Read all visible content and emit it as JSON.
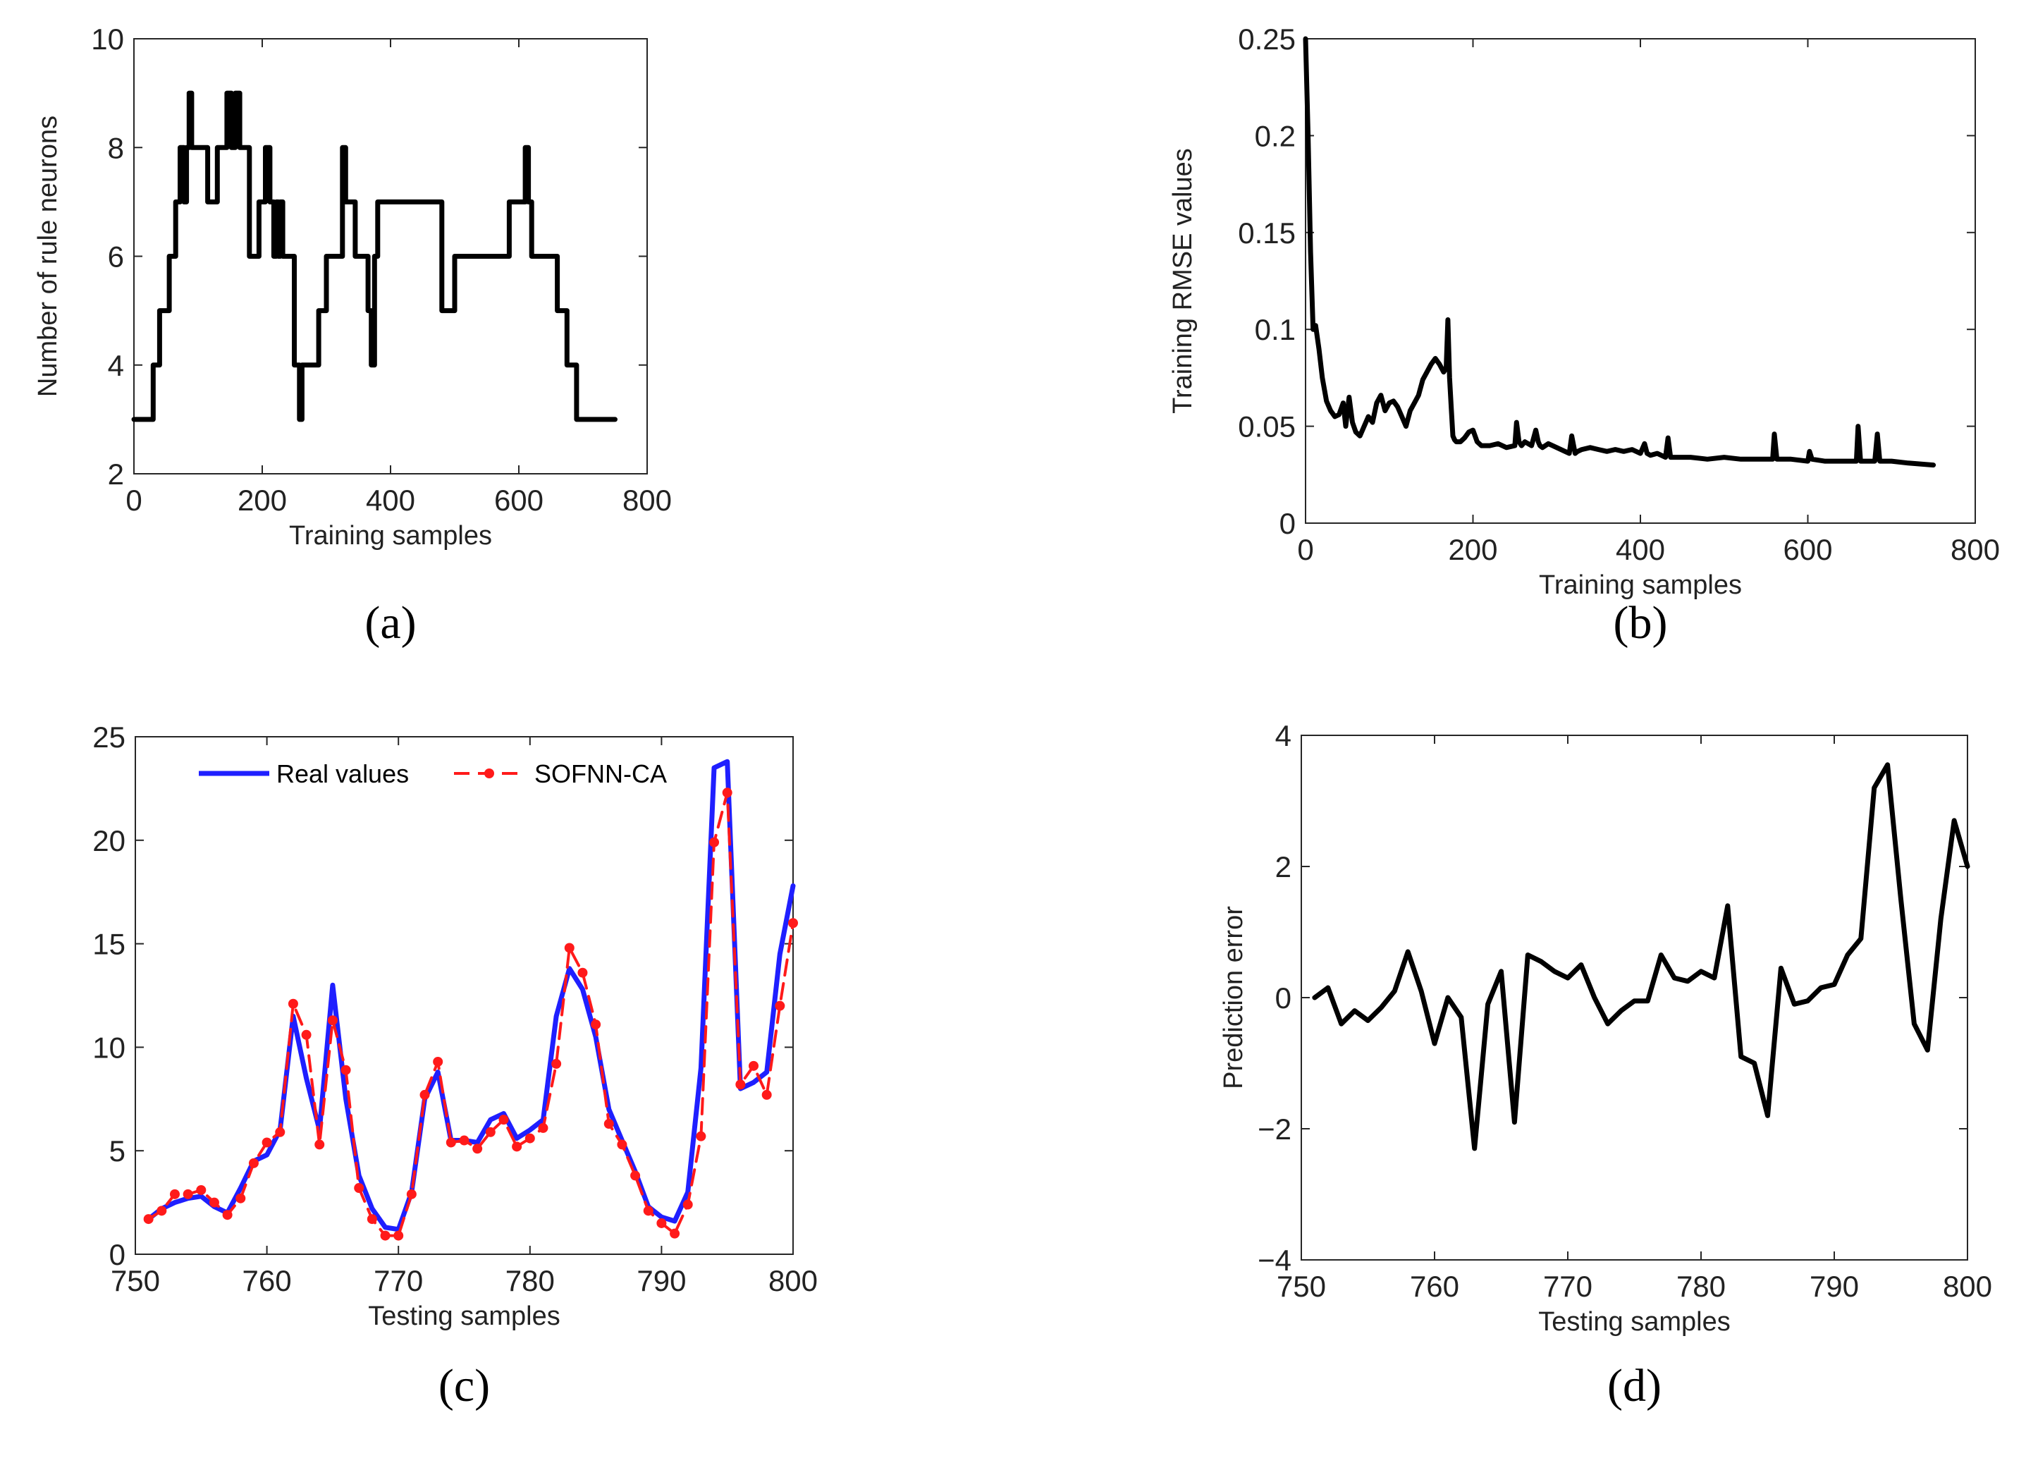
{
  "chart_data": [
    {
      "id": "a",
      "type": "line",
      "panel_label": "(a)",
      "xlabel": "Training samples",
      "ylabel": "Number of rule neurons",
      "xlim": [
        0,
        800
      ],
      "ylim": [
        2,
        10
      ],
      "xticks": [
        0,
        200,
        400,
        600,
        800
      ],
      "yticks": [
        2,
        4,
        6,
        8,
        10
      ],
      "grid": false,
      "series": [
        {
          "name": "Number of rule neurons",
          "color": "#000000",
          "step": true,
          "x": [
            0,
            30,
            40,
            55,
            65,
            72,
            78,
            82,
            86,
            90,
            94,
            115,
            130,
            145,
            152,
            158,
            165,
            180,
            195,
            205,
            212,
            218,
            222,
            225,
            228,
            232,
            250,
            258,
            262,
            288,
            300,
            325,
            330,
            345,
            365,
            370,
            375,
            380,
            385,
            420,
            480,
            490,
            500,
            510,
            585,
            602,
            610,
            615,
            620,
            640,
            660,
            675,
            690,
            750
          ],
          "y": [
            3,
            4,
            5,
            6,
            7,
            8,
            7,
            8,
            9,
            8,
            8,
            7,
            8,
            9,
            8,
            9,
            8,
            6,
            7,
            8,
            7,
            6,
            7,
            6,
            7,
            6,
            4,
            3,
            4,
            5,
            6,
            8,
            7,
            6,
            5,
            4,
            6,
            7,
            7,
            7,
            5,
            5,
            6,
            6,
            7,
            7,
            8,
            7,
            6,
            6,
            5,
            4,
            3,
            3
          ]
        }
      ]
    },
    {
      "id": "b",
      "type": "line",
      "panel_label": "(b)",
      "xlabel": "Training samples",
      "ylabel": "Training RMSE values",
      "xlim": [
        0,
        800
      ],
      "ylim": [
        0,
        0.25
      ],
      "xticks": [
        0,
        200,
        400,
        600,
        800
      ],
      "ytick_labels": [
        "0",
        "0.05",
        "0.1",
        "0.15",
        "0.2",
        "0.25"
      ],
      "yticks": [
        0,
        0.05,
        0.1,
        0.15,
        0.2,
        0.25
      ],
      "grid": false,
      "series": [
        {
          "name": "Training RMSE",
          "color": "#000000",
          "x": [
            0,
            3,
            6,
            9,
            12,
            16,
            20,
            25,
            30,
            35,
            40,
            45,
            48,
            52,
            56,
            60,
            65,
            70,
            75,
            80,
            85,
            90,
            95,
            100,
            105,
            110,
            115,
            120,
            125,
            130,
            135,
            140,
            145,
            150,
            155,
            160,
            165,
            168,
            170,
            172,
            174,
            176,
            178,
            180,
            185,
            190,
            195,
            200,
            205,
            210,
            220,
            230,
            240,
            250,
            252,
            255,
            258,
            262,
            270,
            275,
            278,
            280,
            283,
            290,
            300,
            310,
            315,
            318,
            322,
            325,
            330,
            340,
            350,
            360,
            370,
            380,
            390,
            400,
            405,
            408,
            412,
            420,
            430,
            433,
            436,
            440,
            460,
            480,
            500,
            520,
            540,
            558,
            560,
            563,
            566,
            580,
            600,
            602,
            605,
            620,
            640,
            658,
            660,
            663,
            666,
            680,
            683,
            686,
            700,
            720,
            750
          ],
          "y": [
            0.25,
            0.2,
            0.14,
            0.1,
            0.102,
            0.09,
            0.075,
            0.063,
            0.058,
            0.055,
            0.056,
            0.062,
            0.05,
            0.065,
            0.052,
            0.047,
            0.045,
            0.05,
            0.055,
            0.052,
            0.062,
            0.066,
            0.058,
            0.062,
            0.063,
            0.06,
            0.055,
            0.05,
            0.058,
            0.062,
            0.066,
            0.074,
            0.078,
            0.082,
            0.085,
            0.082,
            0.078,
            0.08,
            0.105,
            0.075,
            0.06,
            0.045,
            0.043,
            0.042,
            0.042,
            0.044,
            0.047,
            0.048,
            0.042,
            0.04,
            0.04,
            0.041,
            0.039,
            0.04,
            0.052,
            0.042,
            0.04,
            0.042,
            0.04,
            0.048,
            0.042,
            0.04,
            0.039,
            0.041,
            0.039,
            0.037,
            0.036,
            0.045,
            0.036,
            0.037,
            0.038,
            0.039,
            0.038,
            0.037,
            0.038,
            0.037,
            0.038,
            0.036,
            0.041,
            0.036,
            0.035,
            0.036,
            0.034,
            0.044,
            0.034,
            0.034,
            0.034,
            0.033,
            0.034,
            0.033,
            0.033,
            0.033,
            0.046,
            0.033,
            0.033,
            0.033,
            0.032,
            0.037,
            0.033,
            0.032,
            0.032,
            0.032,
            0.05,
            0.032,
            0.032,
            0.032,
            0.046,
            0.032,
            0.032,
            0.031,
            0.03
          ]
        }
      ]
    },
    {
      "id": "c",
      "type": "line",
      "panel_label": "(c)",
      "xlabel": "Testing samples",
      "ylabel": "",
      "xlim": [
        750,
        800
      ],
      "ylim": [
        0,
        25
      ],
      "xticks": [
        750,
        760,
        770,
        780,
        790,
        800
      ],
      "yticks": [
        0,
        5,
        10,
        15,
        20,
        25
      ],
      "grid": false,
      "legend_position": "top",
      "series": [
        {
          "name": "Real values",
          "color": "#1f1fff",
          "style": "solid",
          "x": [
            751,
            752,
            753,
            754,
            755,
            756,
            757,
            758,
            759,
            760,
            761,
            762,
            763,
            764,
            765,
            766,
            767,
            768,
            769,
            770,
            771,
            772,
            773,
            774,
            775,
            776,
            777,
            778,
            779,
            780,
            781,
            782,
            783,
            784,
            785,
            786,
            787,
            788,
            789,
            790,
            791,
            792,
            793,
            794,
            795,
            796,
            797,
            798,
            799,
            800
          ],
          "y": [
            1.7,
            2.2,
            2.5,
            2.7,
            2.8,
            2.3,
            2.0,
            3.2,
            4.5,
            4.8,
            6.0,
            11.5,
            8.5,
            6.0,
            13.0,
            7.5,
            3.8,
            2.2,
            1.3,
            1.2,
            3.0,
            7.5,
            8.8,
            5.5,
            5.5,
            5.4,
            6.5,
            6.8,
            5.6,
            6.0,
            6.5,
            11.5,
            13.8,
            12.8,
            10.5,
            7.0,
            5.5,
            4.0,
            2.3,
            1.8,
            1.6,
            3.0,
            9.0,
            23.5,
            23.8,
            8.0,
            8.3,
            8.8,
            14.5,
            17.8
          ]
        },
        {
          "name": "SOFNN-CA",
          "color": "#ff1a1a",
          "style": "dashed",
          "markers": true,
          "x": [
            751,
            752,
            753,
            754,
            755,
            756,
            757,
            758,
            759,
            760,
            761,
            762,
            763,
            764,
            765,
            766,
            767,
            768,
            769,
            770,
            771,
            772,
            773,
            774,
            775,
            776,
            777,
            778,
            779,
            780,
            781,
            782,
            783,
            784,
            785,
            786,
            787,
            788,
            789,
            790,
            791,
            792,
            793,
            794,
            795,
            796,
            797,
            798,
            799,
            800
          ],
          "y": [
            1.7,
            2.1,
            2.9,
            2.9,
            3.1,
            2.5,
            1.9,
            2.7,
            4.4,
            5.4,
            5.9,
            12.1,
            10.6,
            5.3,
            11.3,
            8.9,
            3.2,
            1.7,
            0.9,
            0.9,
            2.9,
            7.7,
            9.3,
            5.4,
            5.5,
            5.1,
            5.9,
            6.5,
            5.2,
            5.6,
            6.1,
            9.2,
            14.8,
            13.6,
            11.1,
            6.3,
            5.3,
            3.8,
            2.1,
            1.5,
            1.0,
            2.4,
            5.7,
            19.9,
            22.3,
            8.2,
            9.1,
            7.7,
            12.0,
            16.0
          ]
        }
      ]
    },
    {
      "id": "d",
      "type": "line",
      "panel_label": "(d)",
      "xlabel": "Testing samples",
      "ylabel": "Prediction error",
      "xlim": [
        750,
        800
      ],
      "ylim": [
        -4,
        4
      ],
      "xticks": [
        750,
        760,
        770,
        780,
        790,
        800
      ],
      "ytick_labels": [
        "−4",
        "−2",
        "0",
        "2",
        "4"
      ],
      "yticks": [
        -4,
        -2,
        0,
        2,
        4
      ],
      "grid": false,
      "series": [
        {
          "name": "Prediction error",
          "color": "#000000",
          "x": [
            751,
            752,
            753,
            754,
            755,
            756,
            757,
            758,
            759,
            760,
            761,
            762,
            763,
            764,
            765,
            766,
            767,
            768,
            769,
            770,
            771,
            772,
            773,
            774,
            775,
            776,
            777,
            778,
            779,
            780,
            781,
            782,
            783,
            784,
            785,
            786,
            787,
            788,
            789,
            790,
            791,
            792,
            793,
            794,
            795,
            796,
            797,
            798,
            799,
            800
          ],
          "y": [
            0.0,
            0.15,
            -0.4,
            -0.2,
            -0.35,
            -0.15,
            0.1,
            0.7,
            0.1,
            -0.7,
            0.0,
            -0.3,
            -2.3,
            -0.1,
            0.4,
            -1.9,
            0.65,
            0.55,
            0.4,
            0.3,
            0.5,
            0.0,
            -0.4,
            -0.2,
            -0.05,
            -0.05,
            0.65,
            0.3,
            0.25,
            0.4,
            0.3,
            1.4,
            -0.9,
            -1.0,
            -1.8,
            0.45,
            -0.1,
            -0.05,
            0.15,
            0.2,
            0.65,
            0.9,
            3.2,
            3.55,
            1.5,
            -0.4,
            -0.8,
            1.2,
            2.7,
            2.0
          ]
        }
      ]
    }
  ]
}
